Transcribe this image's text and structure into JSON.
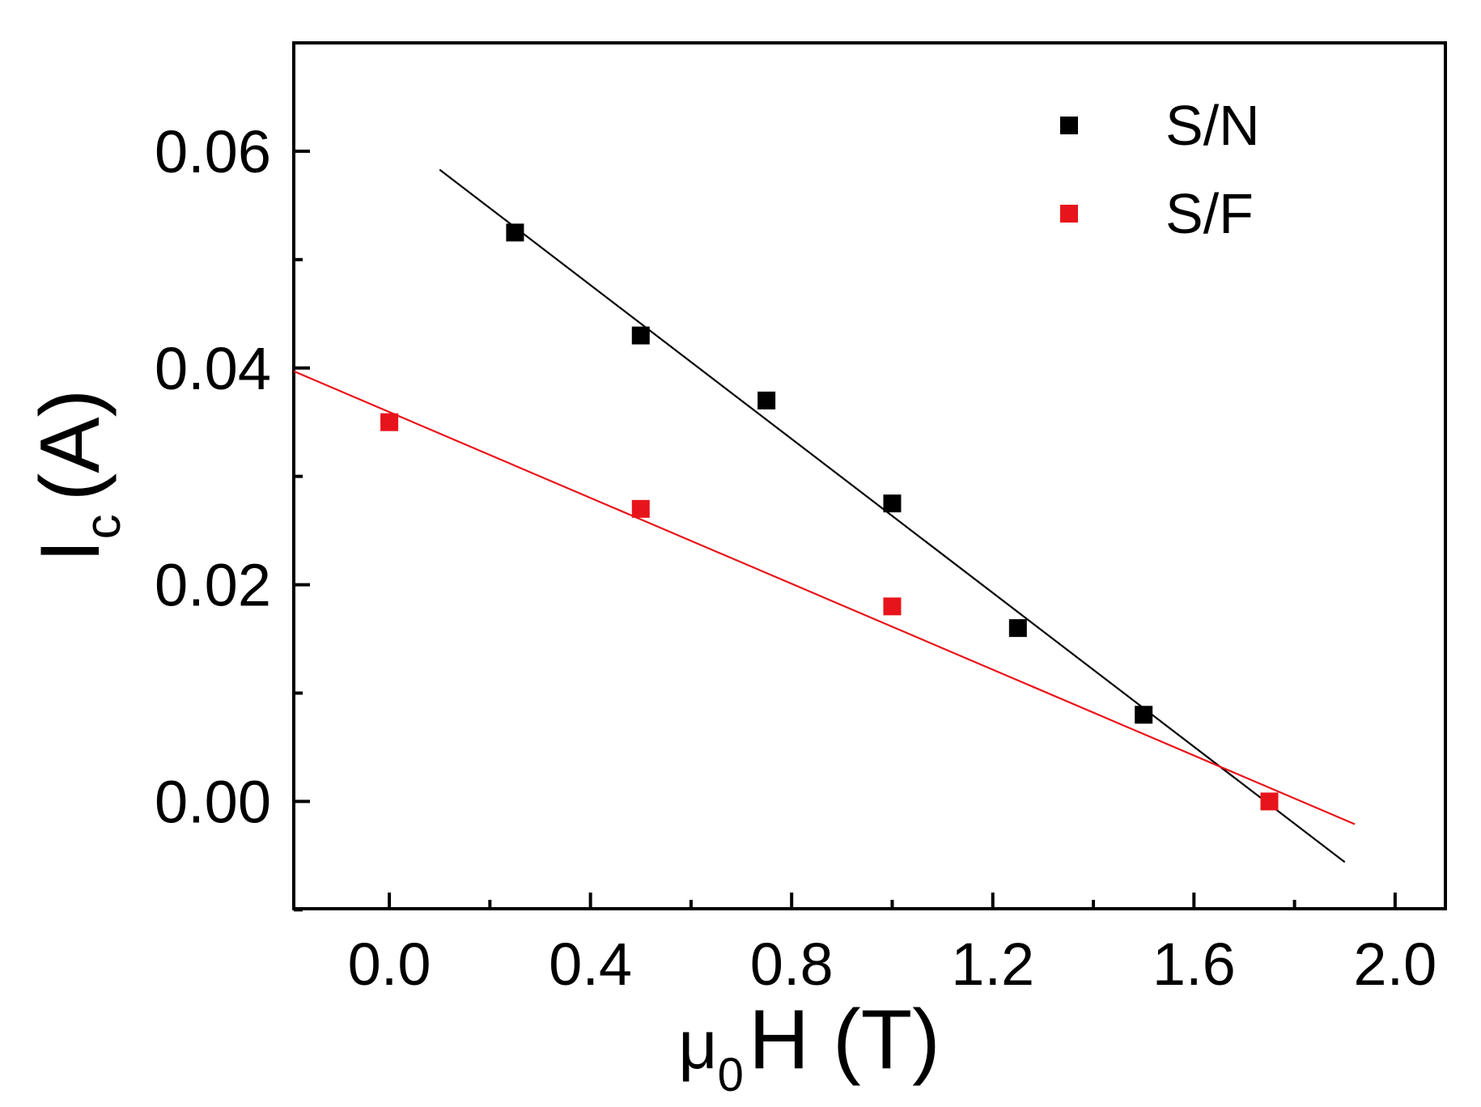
{
  "chart_data": {
    "type": "scatter",
    "title": "",
    "xlabel": {
      "symbol": "μ",
      "subscript": "0",
      "rest": "H (T)"
    },
    "ylabel": {
      "symbol": "I",
      "subscript": "c",
      "rest": "(A)"
    },
    "xlim": [
      -0.19,
      2.1
    ],
    "ylim": [
      -0.0099,
      0.07
    ],
    "x_ticks": [
      0.0,
      0.4,
      0.8,
      1.2,
      1.6,
      2.0
    ],
    "x_tick_labels": [
      "0.0",
      "0.4",
      "0.8",
      "1.2",
      "1.6",
      "2.0"
    ],
    "x_minor_ticks": [
      0.2,
      0.6,
      1.0,
      1.4,
      1.8
    ],
    "y_ticks": [
      0.0,
      0.02,
      0.04,
      0.06
    ],
    "y_tick_labels": [
      "0.00",
      "0.02",
      "0.04",
      "0.06"
    ],
    "y_minor_ticks": [
      -0.01,
      0.01,
      0.03,
      0.05
    ],
    "grid": false,
    "legend_position": "top-right",
    "series": [
      {
        "name": "S/N",
        "color": "#000000",
        "marker": "square",
        "x": [
          0.25,
          0.5,
          0.75,
          1.0,
          1.25,
          1.5
        ],
        "y": [
          0.0525,
          0.043,
          0.037,
          0.0275,
          0.016,
          0.008
        ],
        "fit": {
          "x": [
            0.1,
            1.9
          ],
          "y": [
            0.0583,
            -0.0056
          ]
        }
      },
      {
        "name": "S/F",
        "color": "#e8141b",
        "marker": "square",
        "x": [
          0.0,
          0.5,
          1.0,
          1.75
        ],
        "y": [
          0.035,
          0.027,
          0.018,
          0.0
        ],
        "fit": {
          "x": [
            -0.19,
            1.92
          ],
          "y": [
            0.0397,
            -0.0021
          ]
        }
      }
    ]
  }
}
